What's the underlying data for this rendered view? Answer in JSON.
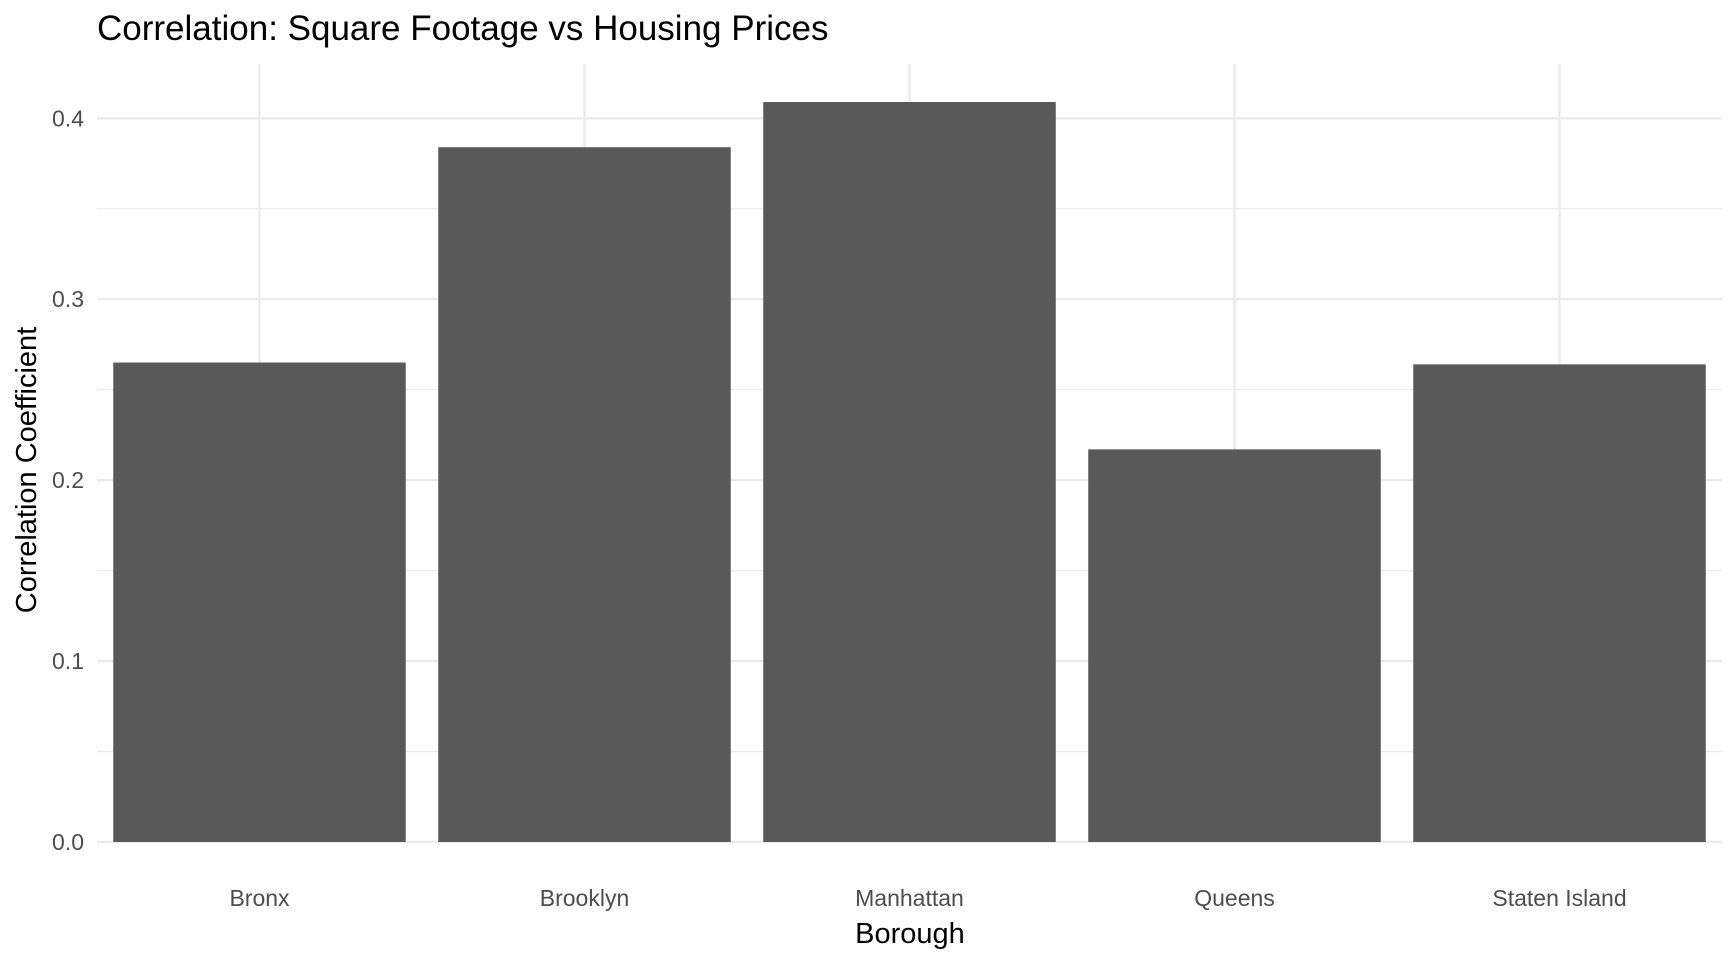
{
  "chart_data": {
    "type": "bar",
    "title": "Correlation: Square Footage vs Housing Prices",
    "xlabel": "Borough",
    "ylabel": "Correlation Coefficient",
    "categories": [
      "Bronx",
      "Brooklyn",
      "Manhattan",
      "Queens",
      "Staten Island"
    ],
    "values": [
      0.265,
      0.384,
      0.409,
      0.217,
      0.264
    ],
    "ylim": [
      0,
      0.43
    ],
    "yticks": [
      0.0,
      0.1,
      0.2,
      0.3,
      0.4
    ],
    "ytick_labels": [
      "0.0",
      "0.1",
      "0.2",
      "0.3",
      "0.4"
    ],
    "grid": true,
    "legend": "none",
    "colors": {
      "bar": "#595959",
      "grid": "#ebebeb",
      "background": "#ffffff"
    }
  }
}
